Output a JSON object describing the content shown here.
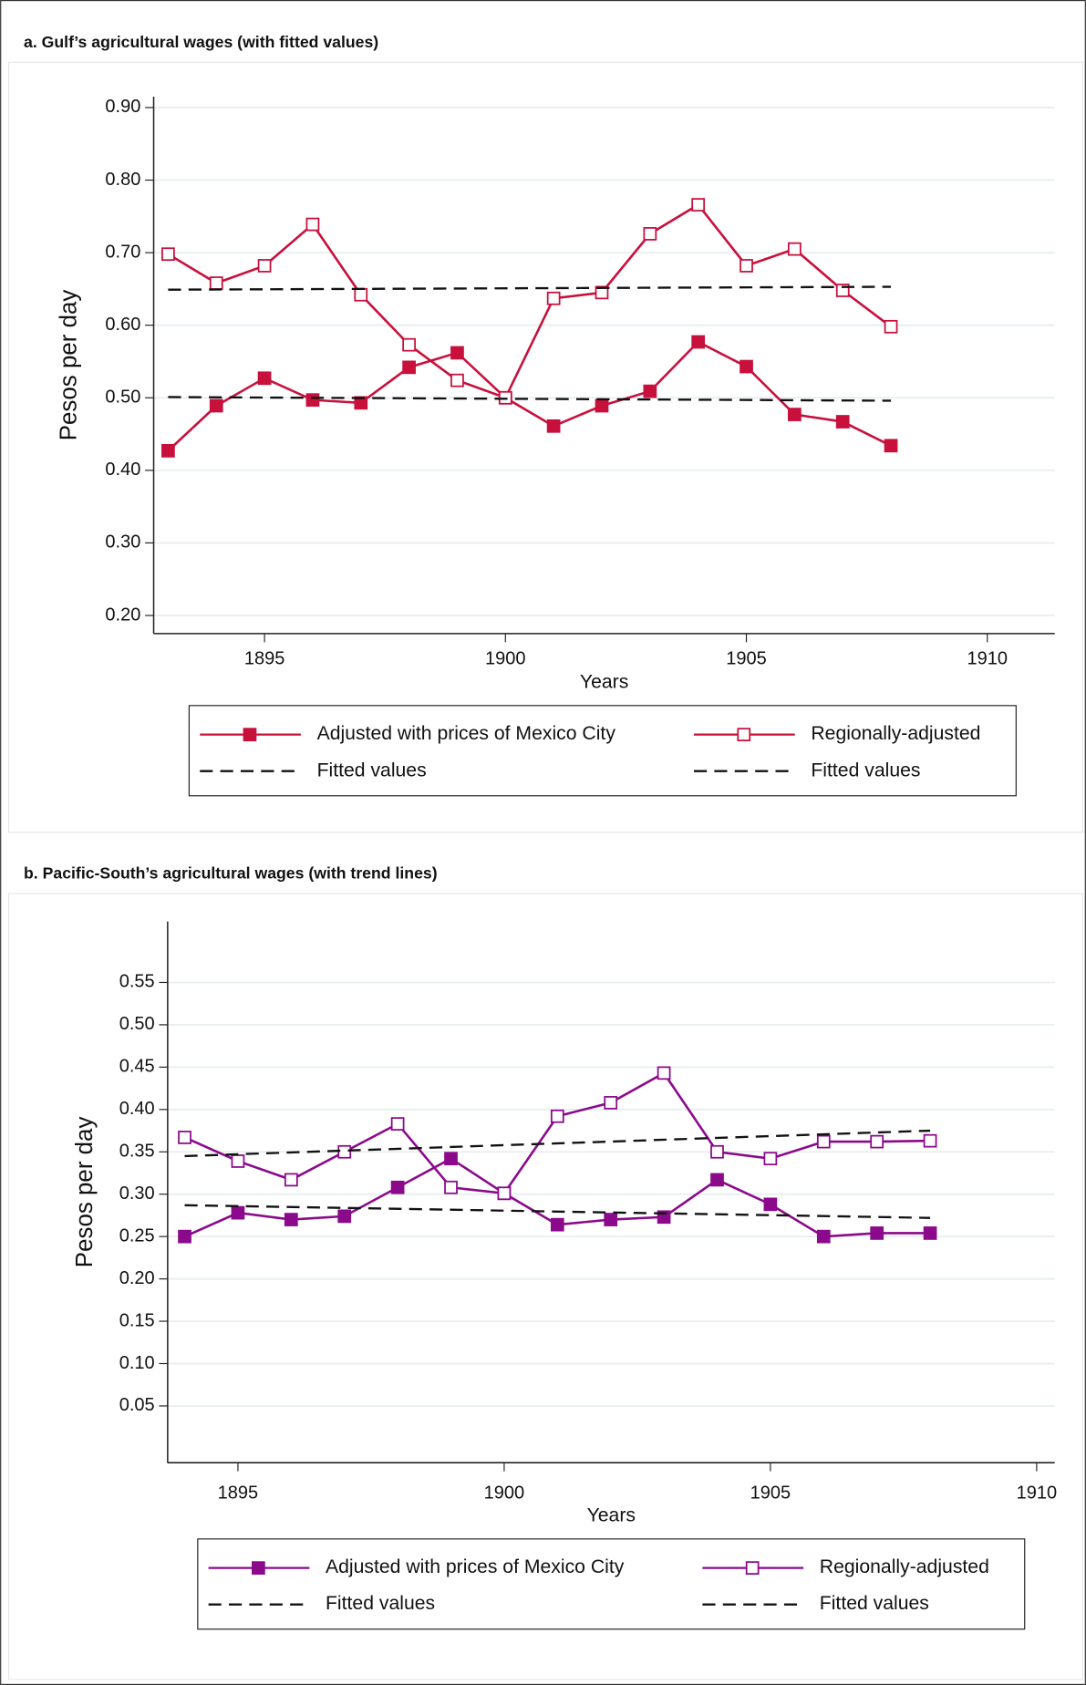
{
  "chart_data": [
    {
      "type": "line",
      "title": "a. Gulf’s agricultural wages (with fitted values)",
      "x_label": "Years",
      "y_label": "Pesos per day",
      "x": [
        1893,
        1894,
        1895,
        1896,
        1897,
        1898,
        1899,
        1900,
        1901,
        1902,
        1903,
        1904,
        1905,
        1906,
        1907,
        1908
      ],
      "xlim": [
        1892.7,
        1911.4
      ],
      "xticks": [
        1895,
        1900,
        1905,
        1910
      ],
      "ylim": [
        0.175,
        0.915
      ],
      "yticks": [
        {
          "value": 0.2,
          "label": "0.20"
        },
        {
          "value": 0.3,
          "label": "0.30"
        },
        {
          "value": 0.4,
          "label": "0.40"
        },
        {
          "value": 0.5,
          "label": "0.50"
        },
        {
          "value": 0.6,
          "label": "0.60"
        },
        {
          "value": 0.7,
          "label": "0.70"
        },
        {
          "value": 0.8,
          "label": "0.80"
        },
        {
          "value": 0.9,
          "label": "0.90"
        }
      ],
      "grid": true,
      "series": [
        {
          "name": "Adjusted with prices of Mexico City",
          "color": "#c8103c",
          "marker": "filled-square",
          "values": [
            0.427,
            0.489,
            0.527,
            0.497,
            0.493,
            0.542,
            0.562,
            0.5,
            0.461,
            0.489,
            0.509,
            0.577,
            0.543,
            0.477,
            0.467,
            0.434
          ]
        },
        {
          "name": "Regionally-adjusted",
          "color": "#c8103c",
          "marker": "hollow-square",
          "values": [
            0.698,
            0.658,
            0.682,
            0.739,
            0.642,
            0.573,
            0.524,
            0.5,
            0.637,
            0.645,
            0.726,
            0.766,
            0.682,
            0.705,
            0.648,
            0.598
          ]
        },
        {
          "name": "Fitted values",
          "color": "#111111",
          "dashed": true,
          "x": [
            1893,
            1908
          ],
          "values": [
            0.501,
            0.496
          ]
        },
        {
          "name": "Fitted values",
          "color": "#111111",
          "dashed": true,
          "x": [
            1893,
            1908
          ],
          "values": [
            0.649,
            0.653
          ]
        }
      ]
    },
    {
      "type": "line",
      "title": "b.  Pacific-South’s agricultural wages (with trend lines)",
      "x_label": "Years",
      "y_label": "Pesos per day",
      "x": [
        1894,
        1895,
        1896,
        1897,
        1898,
        1899,
        1900,
        1901,
        1902,
        1903,
        1904,
        1905,
        1906,
        1907,
        1908
      ],
      "xlim": [
        1893.68,
        1910.34
      ],
      "xticks": [
        1895,
        1900,
        1905,
        1910
      ],
      "ylim": [
        -0.017,
        0.622
      ],
      "yticks": [
        0.05,
        {
          "value": 0.1,
          "label": "0.10"
        },
        0.15,
        {
          "value": 0.2,
          "label": "0.20"
        },
        0.25,
        {
          "value": 0.3,
          "label": "0.30"
        },
        0.35,
        {
          "value": 0.4,
          "label": "0.40"
        },
        0.45,
        {
          "value": 0.5,
          "label": "0.50"
        },
        0.55
      ],
      "grid": true,
      "series": [
        {
          "name": "Adjusted with prices of Mexico City",
          "color": "#8b0a8b",
          "marker": "filled-square",
          "values": [
            0.25,
            0.278,
            0.27,
            0.274,
            0.308,
            0.342,
            0.301,
            0.264,
            0.27,
            0.273,
            0.317,
            0.288,
            0.25,
            0.254,
            0.254
          ]
        },
        {
          "name": "Regionally-adjusted",
          "color": "#8b0a8b",
          "marker": "hollow-square",
          "values": [
            0.367,
            0.339,
            0.317,
            0.35,
            0.383,
            0.308,
            0.301,
            0.392,
            0.408,
            0.443,
            0.35,
            0.342,
            0.362,
            0.362,
            0.363
          ]
        },
        {
          "name": "Fitted values",
          "color": "#111111",
          "dashed": true,
          "x": [
            1894,
            1908
          ],
          "values": [
            0.287,
            0.272
          ]
        },
        {
          "name": "Fitted values",
          "color": "#111111",
          "dashed": true,
          "x": [
            1894,
            1908
          ],
          "values": [
            0.345,
            0.375
          ]
        }
      ]
    }
  ]
}
